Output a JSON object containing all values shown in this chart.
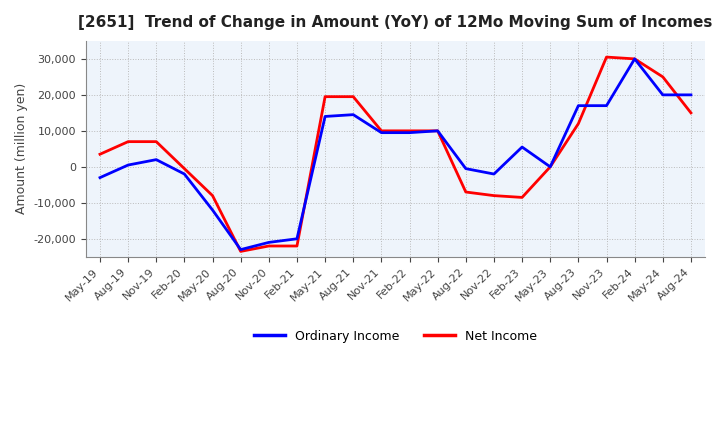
{
  "title": "[2651]  Trend of Change in Amount (YoY) of 12Mo Moving Sum of Incomes",
  "ylabel": "Amount (million yen)",
  "ylim": [
    -25000,
    35000
  ],
  "yticks": [
    -20000,
    -10000,
    0,
    10000,
    20000,
    30000
  ],
  "legend_labels": [
    "Ordinary Income",
    "Net Income"
  ],
  "line_colors": [
    "#0000ff",
    "#ff0000"
  ],
  "dates": [
    "May-19",
    "Aug-19",
    "Nov-19",
    "Feb-20",
    "May-20",
    "Aug-20",
    "Nov-20",
    "Feb-21",
    "May-21",
    "Aug-21",
    "Nov-21",
    "Feb-22",
    "May-22",
    "Aug-22",
    "Nov-22",
    "Feb-23",
    "May-23",
    "Aug-23",
    "Nov-23",
    "Feb-24",
    "May-24",
    "Aug-24"
  ],
  "ordinary_income": [
    -3000,
    500,
    2000,
    -2000,
    -12000,
    -23000,
    -21000,
    -20000,
    14000,
    14500,
    9500,
    9500,
    10000,
    -500,
    -2000,
    5500,
    0,
    17000,
    17000,
    30000,
    20000,
    20000
  ],
  "net_income": [
    3500,
    7000,
    7000,
    -500,
    -8000,
    -23500,
    -22000,
    -22000,
    19500,
    19500,
    10000,
    10000,
    10000,
    -7000,
    -8000,
    -8500,
    0,
    12000,
    30500,
    30000,
    25000,
    15000
  ],
  "grid_color": "#bbbbbb",
  "grid_style": ":",
  "plot_bg_color": "#eef4fb",
  "figure_bg_color": "#ffffff"
}
